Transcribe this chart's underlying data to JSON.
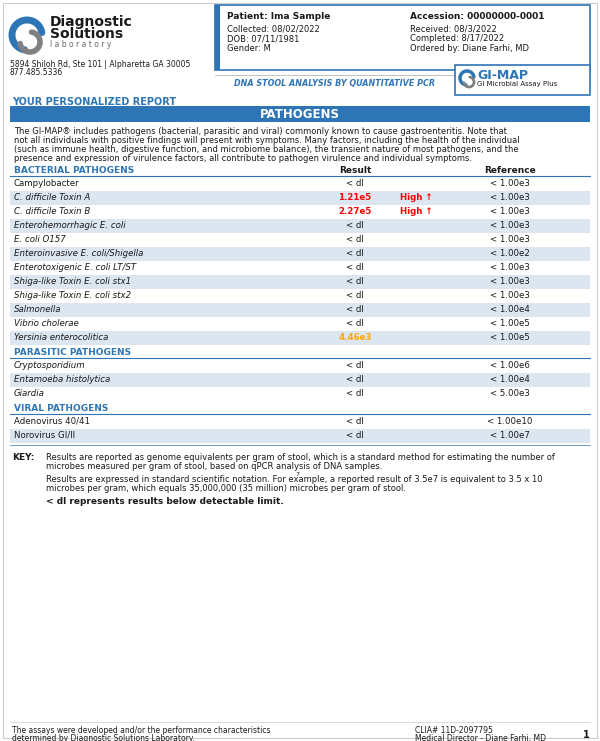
{
  "page_bg": "#ffffff",
  "header": {
    "patient_label": "Patient: Ima Sample",
    "accession_label": "Accession: 00000000-0001",
    "collected": "Collected: 08/02/2022",
    "received": "Received: 08/3/2022",
    "dob": "DOB: 07/11/1981",
    "completed": "Completed: 8/17/2022",
    "gender": "Gender: M",
    "ordered": "Ordered by: Diane Farhi, MD",
    "dna_text": "DNA STOOL ANALYSIS BY QUANTITATIVE PCR",
    "gimap_text": "GI-MAP",
    "gimap_sub": "GI Microbial Assay Plus",
    "address_line1": "5894 Shiloh Rd, Ste 101 | Alpharetta GA 30005",
    "address_line2": "877.485.5336",
    "box_border": "#2e75b6"
  },
  "section_title_bg": "#2e75b6",
  "section_title_text": "PATHOGENS",
  "section_title_color": "#ffffff",
  "your_report_text": "YOUR PERSONALIZED REPORT",
  "your_report_color": "#2e75b6",
  "description": "The GI-MAP® includes pathogens (bacterial, parasitic and viral) commonly known to cause gastroenteritis. Note that not all individuals with positive findings will present with symptoms. Many factors, including the health of the individual (such as immune health, digestive function, and microbiome balance), the transient nature of most pathogens, and the presence and expression of virulence factors, all contribute to pathogen virulence and individual symptoms.",
  "subsection_label_color": "#2e75b6",
  "row_alt_color": "#dce6f1",
  "row_normal_color": "#ffffff",
  "bacterial_label": "BACTERIAL PATHOGENS",
  "bacterial_rows": [
    {
      "name": "Campylobacter",
      "italic": false,
      "result": "< dl",
      "result_color": "#1a1a1a",
      "flag": "",
      "reference": "< 1.00e3"
    },
    {
      "name": "C. difficile Toxin A",
      "italic": true,
      "result": "1.21e5",
      "result_color": "#ff0000",
      "flag": "High ↑",
      "reference": "< 1.00e3"
    },
    {
      "name": "C. difficile Toxin B",
      "italic": true,
      "result": "2.27e5",
      "result_color": "#ff0000",
      "flag": "High ↑",
      "reference": "< 1.00e3"
    },
    {
      "name": "Enterohemorrhagic E. coli",
      "italic": true,
      "result": "< dl",
      "result_color": "#1a1a1a",
      "flag": "",
      "reference": "< 1.00e3"
    },
    {
      "name": "E. coli O157",
      "italic": true,
      "result": "< dl",
      "result_color": "#1a1a1a",
      "flag": "",
      "reference": "< 1.00e3"
    },
    {
      "name": "Enteroinvasive E. coli/Shigella",
      "italic": true,
      "result": "< dl",
      "result_color": "#1a1a1a",
      "flag": "",
      "reference": "< 1.00e2"
    },
    {
      "name": "Enterotoxigenic E. coli LT/ST",
      "italic": true,
      "result": "< dl",
      "result_color": "#1a1a1a",
      "flag": "",
      "reference": "< 1.00e3"
    },
    {
      "name": "Shiga-like Toxin E. coli stx1",
      "italic": true,
      "result": "< dl",
      "result_color": "#1a1a1a",
      "flag": "",
      "reference": "< 1.00e3"
    },
    {
      "name": "Shiga-like Toxin E. coli stx2",
      "italic": true,
      "result": "< dl",
      "result_color": "#1a1a1a",
      "flag": "",
      "reference": "< 1.00e3"
    },
    {
      "name": "Salmonella",
      "italic": true,
      "result": "< dl",
      "result_color": "#1a1a1a",
      "flag": "",
      "reference": "< 1.00e4"
    },
    {
      "name": "Vibrio cholerae",
      "italic": true,
      "result": "< dl",
      "result_color": "#1a1a1a",
      "flag": "",
      "reference": "< 1.00e5"
    },
    {
      "name": "Yersinia enterocolitica",
      "italic": true,
      "result": "4.46e3",
      "result_color": "#ffa500",
      "flag": "",
      "reference": "< 1.00e5"
    }
  ],
  "parasitic_label": "PARASITIC PATHOGENS",
  "parasitic_rows": [
    {
      "name": "Cryptosporidium",
      "italic": true,
      "result": "< dl",
      "result_color": "#1a1a1a",
      "flag": "",
      "reference": "< 1.00e6"
    },
    {
      "name": "Entamoeba histolytica",
      "italic": true,
      "result": "< dl",
      "result_color": "#1a1a1a",
      "flag": "",
      "reference": "< 1.00e4"
    },
    {
      "name": "Giardia",
      "italic": true,
      "result": "< dl",
      "result_color": "#1a1a1a",
      "flag": "",
      "reference": "< 5.00e3"
    }
  ],
  "viral_label": "VIRAL PATHOGENS",
  "viral_rows": [
    {
      "name": "Adenovirus 40/41",
      "italic": false,
      "result": "< dl",
      "result_color": "#1a1a1a",
      "flag": "",
      "reference": "< 1.00e10"
    },
    {
      "name": "Norovirus GI/II",
      "italic": false,
      "result": "< dl",
      "result_color": "#1a1a1a",
      "flag": "",
      "reference": "< 1.00e7"
    }
  ],
  "key_title": "KEY:",
  "key_text1a": "Results are reported as genome equivalents per gram of stool, which is a standard method for estimating the number of",
  "key_text1b": "microbes measured per gram of stool, based on qPCR analysis of DNA samples.",
  "key_text2a": "Results are expressed in standard scientific notation. For example, a reported result of 3.5e7 is equivalent to 3.5 x 10",
  "key_text2_super": "7",
  "key_text2b": "microbes per gram, which equals 35,000,000 (35 million) microbes per gram of stool.",
  "key_text3": "< dl represents results below detectable limit.",
  "footer_left1": "The assays were developed and/or the performance characteristics",
  "footer_left2": "determined by Diagnostic Solutions Laboratory.",
  "footer_right1": "CLIA# 11D-2097795",
  "footer_right2": "Medical Director - Diane Farhi, MD",
  "page_num": "1"
}
